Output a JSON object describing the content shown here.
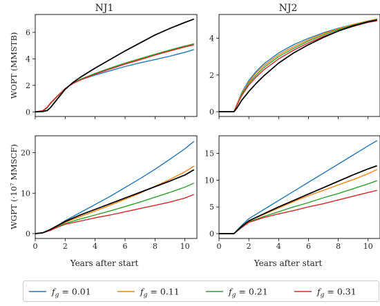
{
  "figure": {
    "legend": [
      {
        "symbol": "f",
        "sub": "g",
        "rest": " = 0.01",
        "color": "#1f77b4"
      },
      {
        "symbol": "f",
        "sub": "g",
        "rest": " = 0.11",
        "color": "#ff7f0e"
      },
      {
        "symbol": "f",
        "sub": "g",
        "rest": " = 0.21",
        "color": "#2ca02c"
      },
      {
        "symbol": "f",
        "sub": "g",
        "rest": " = 0.31",
        "color": "#d62728"
      }
    ],
    "reference_color": "#000000"
  },
  "chart_data": [
    {
      "type": "line",
      "title": "NJ1",
      "xlabel": "",
      "ylabel": "WOPT (MMSTB)",
      "xlim": [
        0,
        10.8
      ],
      "ylim": [
        -0.35,
        7.35
      ],
      "xticks": [
        0,
        2,
        4,
        6,
        8,
        10
      ],
      "yticks": [
        0,
        2,
        4,
        6
      ],
      "x": [
        0,
        0.5,
        0.8,
        1,
        1.5,
        2,
        2.5,
        3,
        4,
        5,
        6,
        7,
        8,
        9,
        10,
        10.6
      ],
      "series": [
        {
          "color": "#1f77b4",
          "values": [
            0,
            0.05,
            0.3,
            0.6,
            1.2,
            1.75,
            2.15,
            2.4,
            2.78,
            3.1,
            3.42,
            3.7,
            3.95,
            4.2,
            4.5,
            4.7
          ]
        },
        {
          "color": "#ff7f0e",
          "values": [
            0,
            0.05,
            0.3,
            0.6,
            1.2,
            1.75,
            2.15,
            2.45,
            2.88,
            3.25,
            3.62,
            3.97,
            4.32,
            4.65,
            4.95,
            5.15
          ]
        },
        {
          "color": "#2ca02c",
          "values": [
            0,
            0.05,
            0.3,
            0.6,
            1.2,
            1.75,
            2.15,
            2.45,
            2.9,
            3.3,
            3.68,
            4.02,
            4.35,
            4.67,
            4.97,
            5.12
          ]
        },
        {
          "color": "#d62728",
          "values": [
            0,
            0.1,
            0.35,
            0.65,
            1.22,
            1.75,
            2.12,
            2.4,
            2.85,
            3.23,
            3.6,
            3.93,
            4.28,
            4.6,
            4.9,
            5.05
          ]
        },
        {
          "color": "#000000",
          "values": [
            0,
            0.02,
            0.1,
            0.3,
            1.0,
            1.7,
            2.2,
            2.6,
            3.3,
            3.95,
            4.6,
            5.2,
            5.8,
            6.3,
            6.75,
            7.0
          ]
        }
      ]
    },
    {
      "type": "line",
      "title": "NJ2",
      "xlabel": "",
      "ylabel": "",
      "xlim": [
        0,
        10.8
      ],
      "ylim": [
        -0.26,
        5.3
      ],
      "xticks": [
        0,
        2,
        4,
        6,
        8,
        10
      ],
      "yticks": [
        0,
        2,
        4
      ],
      "x": [
        0,
        0.5,
        1,
        1.2,
        1.5,
        2,
        2.5,
        3,
        4,
        5,
        6,
        7,
        8,
        9,
        10,
        10.6
      ],
      "series": [
        {
          "color": "#1f77b4",
          "values": [
            0,
            0,
            0,
            0.4,
            1.0,
            1.7,
            2.2,
            2.6,
            3.2,
            3.65,
            4.0,
            4.3,
            4.55,
            4.75,
            4.95,
            5.05
          ]
        },
        {
          "color": "#ff7f0e",
          "values": [
            0,
            0,
            0,
            0.4,
            0.95,
            1.62,
            2.12,
            2.5,
            3.1,
            3.55,
            3.92,
            4.25,
            4.52,
            4.75,
            4.95,
            5.05
          ]
        },
        {
          "color": "#2ca02c",
          "values": [
            0,
            0,
            0,
            0.35,
            0.9,
            1.55,
            2.0,
            2.4,
            3.0,
            3.45,
            3.85,
            4.18,
            4.47,
            4.72,
            4.92,
            5.02
          ]
        },
        {
          "color": "#d62728",
          "values": [
            0,
            0,
            0,
            0.35,
            0.85,
            1.45,
            1.9,
            2.28,
            2.88,
            3.35,
            3.75,
            4.1,
            4.4,
            4.65,
            4.87,
            4.95
          ]
        },
        {
          "color": "#000000",
          "values": [
            0,
            0,
            0,
            0.2,
            0.6,
            1.1,
            1.55,
            1.95,
            2.65,
            3.2,
            3.65,
            4.05,
            4.4,
            4.68,
            4.9,
            5.0
          ]
        }
      ]
    },
    {
      "type": "line",
      "title": "",
      "xlabel": "Years after start",
      "ylabel": "WGPT (·10⁷ MMSCF)",
      "xlim": [
        0,
        10.8
      ],
      "ylim": [
        -1.2,
        24.2
      ],
      "xticks": [
        0,
        2,
        4,
        6,
        8,
        10
      ],
      "yticks": [
        0,
        10,
        20
      ],
      "x": [
        0,
        0.5,
        1,
        1.5,
        2,
        3,
        4,
        5,
        6,
        7,
        8,
        9,
        10,
        10.6
      ],
      "series": [
        {
          "color": "#1f77b4",
          "values": [
            0,
            0.2,
            0.8,
            2.0,
            3.2,
            5.2,
            7.2,
            9.2,
            11.4,
            13.6,
            15.9,
            18.4,
            21.0,
            22.8
          ]
        },
        {
          "color": "#ff7f0e",
          "values": [
            0,
            0.2,
            0.8,
            1.8,
            2.8,
            4.2,
            5.6,
            7.0,
            8.5,
            10.0,
            11.7,
            13.4,
            15.3,
            16.7
          ]
        },
        {
          "color": "#2ca02c",
          "values": [
            0,
            0.2,
            0.8,
            1.7,
            2.5,
            3.6,
            4.6,
            5.6,
            6.7,
            7.8,
            9.0,
            10.2,
            11.5,
            12.5
          ]
        },
        {
          "color": "#d62728",
          "values": [
            0,
            0.2,
            0.8,
            1.6,
            2.3,
            3.1,
            3.9,
            4.6,
            5.4,
            6.2,
            7.0,
            7.8,
            8.8,
            9.7
          ]
        },
        {
          "color": "#000000",
          "values": [
            0,
            0.2,
            1.0,
            2.0,
            3.0,
            4.6,
            6.0,
            7.4,
            8.8,
            10.2,
            11.6,
            13.0,
            14.5,
            15.8
          ]
        }
      ]
    },
    {
      "type": "line",
      "title": "",
      "xlabel": "Years after start",
      "ylabel": "",
      "xlim": [
        0,
        10.8
      ],
      "ylim": [
        -0.9,
        18.3
      ],
      "xticks": [
        0,
        2,
        4,
        6,
        8,
        10
      ],
      "yticks": [
        0,
        5,
        10,
        15
      ],
      "x": [
        0,
        0.5,
        1,
        1.5,
        2,
        3,
        4,
        5,
        6,
        7,
        8,
        9,
        10,
        10.6
      ],
      "series": [
        {
          "color": "#1f77b4",
          "values": [
            0,
            0,
            0,
            1.5,
            2.8,
            4.5,
            6.2,
            7.9,
            9.6,
            11.3,
            13.0,
            14.7,
            16.4,
            17.4
          ]
        },
        {
          "color": "#ff7f0e",
          "values": [
            0,
            0,
            0,
            1.3,
            2.4,
            3.6,
            4.8,
            6.0,
            7.1,
            8.1,
            9.1,
            10.1,
            11.2,
            12.0
          ]
        },
        {
          "color": "#2ca02c",
          "values": [
            0,
            0,
            0,
            1.2,
            2.2,
            3.2,
            4.1,
            5.0,
            5.8,
            6.7,
            7.5,
            8.4,
            9.3,
            9.9
          ]
        },
        {
          "color": "#d62728",
          "values": [
            0,
            0,
            0,
            1.1,
            2.1,
            3.0,
            3.7,
            4.3,
            5.0,
            5.6,
            6.3,
            7.0,
            7.7,
            8.1
          ]
        },
        {
          "color": "#000000",
          "values": [
            0,
            0,
            0,
            1.3,
            2.4,
            3.7,
            5.0,
            6.2,
            7.4,
            8.6,
            9.8,
            11.0,
            12.1,
            12.7
          ]
        }
      ]
    }
  ]
}
